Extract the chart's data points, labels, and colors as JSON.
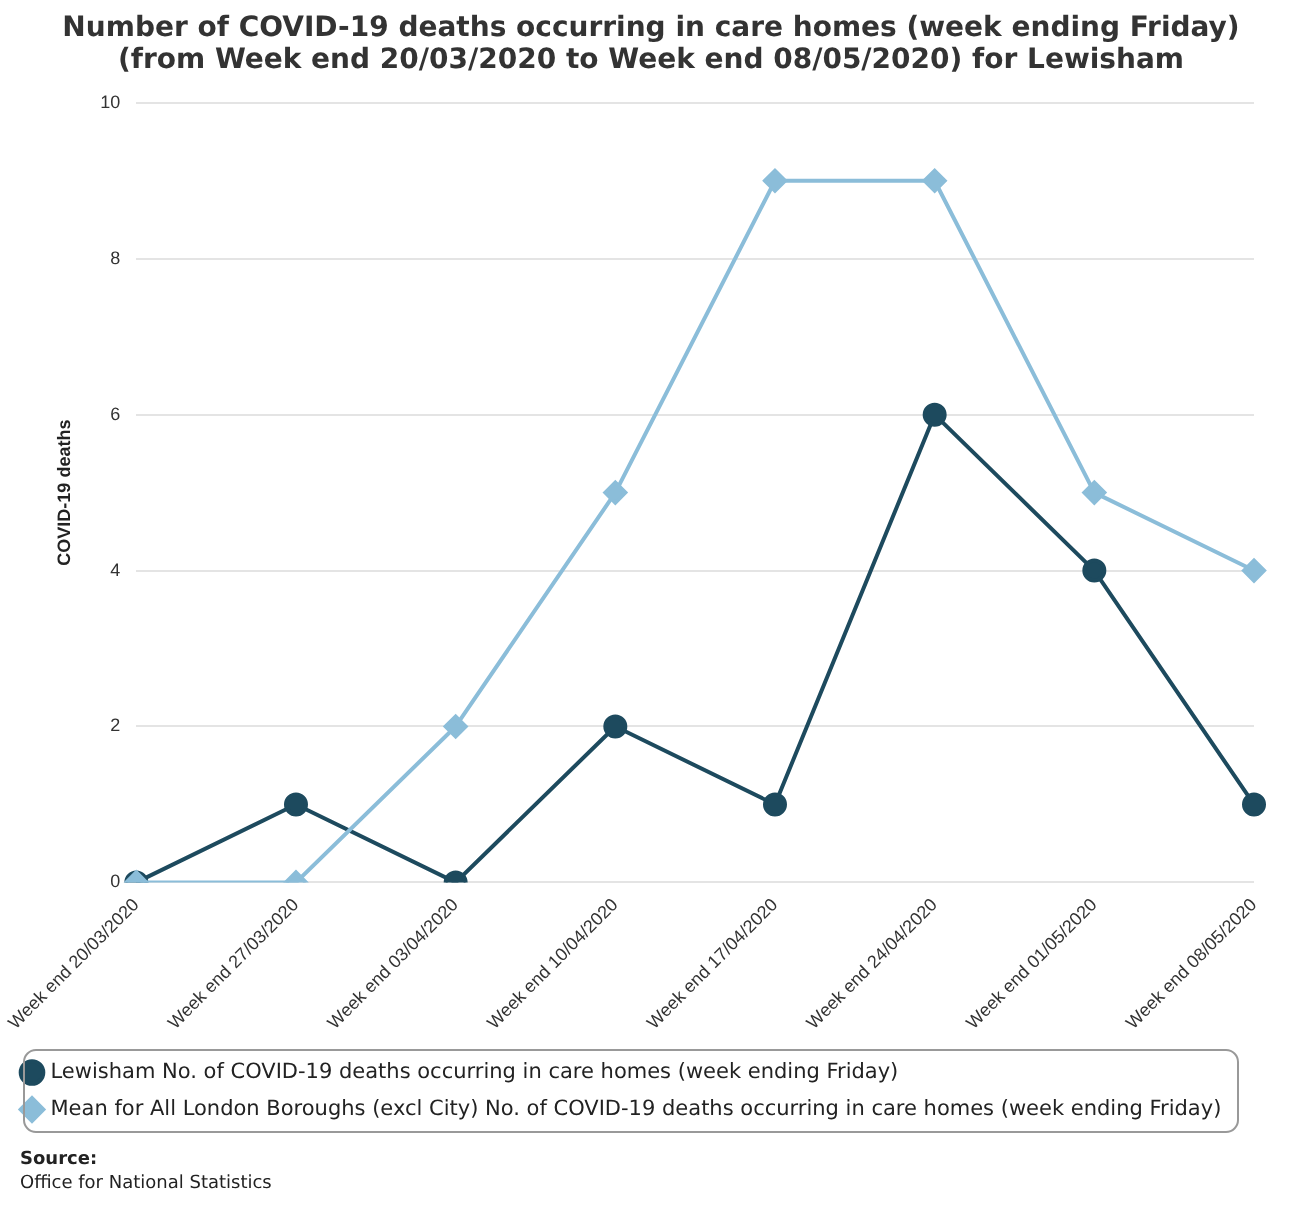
{
  "chart_data": {
    "type": "line",
    "title": "Number of COVID-19 deaths occurring in care homes (week ending Friday) (from Week end 20/03/2020 to Week end 08/05/2020) for Lewisham",
    "ylabel": "COVID-19 deaths",
    "categories": [
      "Week end 20/03/2020",
      "Week end 27/03/2020",
      "Week end 03/04/2020",
      "Week end 10/04/2020",
      "Week end 17/04/2020",
      "Week end 24/04/2020",
      "Week end 01/05/2020",
      "Week end 08/05/2020"
    ],
    "series": [
      {
        "name": "Lewisham No. of COVID-19 deaths occurring in care homes (week ending Friday)",
        "color": "#1d4a5e",
        "marker": "circle",
        "values": [
          0,
          1,
          0,
          2,
          1,
          6,
          4,
          1
        ]
      },
      {
        "name": "Mean for All London Boroughs (excl City) No. of COVID-19 deaths occurring in care homes (week ending Friday)",
        "color": "#8bbdd9",
        "marker": "diamond",
        "values": [
          0,
          0,
          2,
          5,
          9,
          9,
          5,
          4
        ]
      }
    ],
    "ylim": [
      0,
      10
    ],
    "yticks": [
      0,
      2,
      4,
      6,
      8,
      10
    ],
    "grid": "y",
    "legend": "bottom",
    "line_style": "solid",
    "annotations": [
      "Source:",
      "Office for National Statistics"
    ]
  }
}
